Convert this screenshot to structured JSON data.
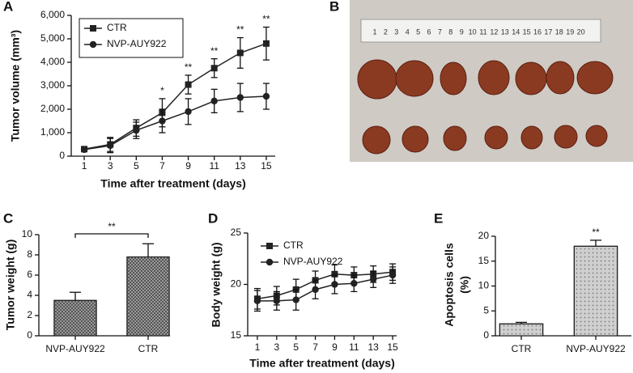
{
  "chart_data": [
    {
      "panel": "A",
      "type": "line",
      "xlabel": "Time after treatment (days)",
      "ylabel": "Tumor volume (mm³)",
      "x": [
        1,
        3,
        5,
        7,
        9,
        11,
        13,
        15
      ],
      "xlim": [
        0,
        16
      ],
      "xticks": [
        1,
        3,
        5,
        7,
        9,
        11,
        13,
        15
      ],
      "ylim": [
        0,
        6000
      ],
      "yticks": [
        0,
        {
          "value": 1000,
          "label": "1,000"
        },
        {
          "value": 2000,
          "label": "2,000"
        },
        {
          "value": 3000,
          "label": "3,000"
        },
        {
          "value": 4000,
          "label": "4,000"
        },
        {
          "value": 5000,
          "label": "5,000"
        },
        {
          "value": 6000,
          "label": "6,000"
        }
      ],
      "legend": {
        "loc": "upper left",
        "frame": true
      },
      "series": [
        {
          "name": "CTR",
          "color": "#222222",
          "marker": "square",
          "values": [
            300,
            500,
            1200,
            1850,
            3050,
            3750,
            4400,
            4800
          ],
          "errors": [
            50,
            300,
            350,
            600,
            400,
            400,
            650,
            700
          ],
          "significance": [
            null,
            null,
            null,
            "*",
            "**",
            "**",
            "**",
            "**"
          ]
        },
        {
          "name": "NVP-AUY922",
          "color": "#222222",
          "marker": "circle",
          "values": [
            280,
            450,
            1100,
            1500,
            1900,
            2350,
            2500,
            2550
          ],
          "errors": [
            50,
            300,
            350,
            500,
            550,
            500,
            600,
            550
          ]
        }
      ]
    },
    {
      "panel": "B",
      "type": "image",
      "ruler_labels": [
        1,
        2,
        3,
        4,
        5,
        6,
        7,
        8,
        9,
        10,
        11,
        12,
        13,
        14,
        15,
        16,
        17,
        18,
        19,
        20
      ]
    },
    {
      "panel": "C",
      "type": "bar",
      "ylabel": "Tumor weight (g)",
      "categories": [
        "NVP-AUY922",
        "CTR"
      ],
      "values": [
        3.5,
        7.8
      ],
      "errors": [
        0.8,
        1.3
      ],
      "color": "#9a9a9a",
      "ylim": [
        0,
        10
      ],
      "yticks": [
        0,
        2,
        4,
        6,
        8,
        10
      ],
      "bracket": {
        "label": "**"
      }
    },
    {
      "panel": "D",
      "type": "line",
      "xlabel": "Time after treatment (days)",
      "ylabel": "Body weight (g)",
      "x": [
        1,
        3,
        5,
        7,
        9,
        11,
        13,
        15
      ],
      "xlim": [
        0,
        16
      ],
      "xticks": [
        1,
        3,
        5,
        7,
        9,
        11,
        13,
        15
      ],
      "ylim": [
        15,
        25
      ],
      "yticks": [
        15,
        20,
        25
      ],
      "legend": {
        "loc": "upper left",
        "frame": false
      },
      "series": [
        {
          "name": "CTR",
          "color": "#222222",
          "marker": "square",
          "values": [
            18.6,
            18.9,
            19.5,
            20.4,
            21.0,
            20.9,
            21.0,
            21.2
          ],
          "errors": [
            1.0,
            0.9,
            1.0,
            0.9,
            0.9,
            0.8,
            0.8,
            0.8
          ]
        },
        {
          "name": "NVP-AUY922",
          "color": "#222222",
          "marker": "circle",
          "values": [
            18.4,
            18.4,
            18.5,
            19.5,
            20.0,
            20.1,
            20.5,
            20.9
          ],
          "errors": [
            1.0,
            0.9,
            1.0,
            0.9,
            0.9,
            0.8,
            0.8,
            0.8
          ]
        }
      ]
    },
    {
      "panel": "E",
      "type": "bar",
      "ylabel": [
        "Apoptosis cells",
        "(%)"
      ],
      "categories": [
        "CTR",
        "NVP-AUY922"
      ],
      "values": [
        2.4,
        18
      ],
      "errors": [
        0.3,
        1.2
      ],
      "color": "#d0d0d0",
      "ylim": [
        0,
        20
      ],
      "yticks": [
        0,
        5,
        10,
        15,
        20
      ],
      "significance": [
        null,
        "**"
      ]
    }
  ]
}
